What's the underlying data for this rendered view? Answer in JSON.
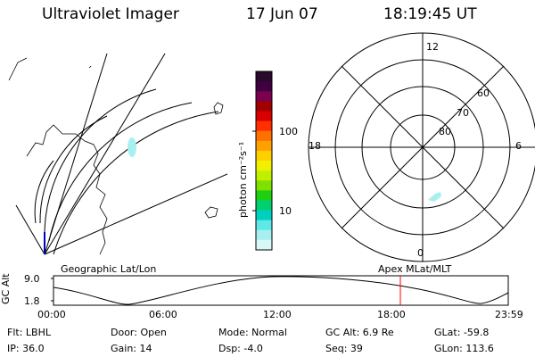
{
  "header": {
    "instrument": "Ultraviolet Imager",
    "date": "17 Jun 07",
    "time": "18:19:45 UT"
  },
  "colorbar": {
    "unit": "photon cm⁻²s⁻¹",
    "tick_100": "100",
    "tick_10": "10",
    "colors": [
      "#2a0a2a",
      "#400040",
      "#7a0050",
      "#a00000",
      "#d80000",
      "#ff3000",
      "#ff7000",
      "#ffa000",
      "#ffd000",
      "#f0f000",
      "#c0f000",
      "#80e000",
      "#20d010",
      "#00d070",
      "#00d0c0",
      "#60e8e8",
      "#a8f0f0",
      "#d8f8f8"
    ]
  },
  "polar": {
    "label_12": "12",
    "label_18": "18",
    "label_6": "6",
    "label_0": "0",
    "label_60": "60",
    "label_70": "70",
    "label_80": "80"
  },
  "panel_labels": {
    "geographic": "Geographic Lat/Lon",
    "apex": "Apex  MLat/MLT"
  },
  "altitude_plot": {
    "axis_label": "GC Alt",
    "ymax": "9.0",
    "ymin": "1.8",
    "time_ticks": [
      "00:00",
      "06:00",
      "12:00",
      "18:00",
      "23:59"
    ],
    "marker_color": "#ff0000"
  },
  "info": {
    "filter": "Flt: LBHL",
    "ip": "IP: 36.0",
    "door": "Door: Open",
    "gain": "Gain: 14",
    "mode": "Mode: Normal",
    "dsp": "Dsp:    -4.0",
    "gc_alt": "GC Alt: 6.9 Re",
    "seq": "Seq: 39",
    "glat": "GLat: -59.8",
    "glon": "GLon: 113.6"
  }
}
